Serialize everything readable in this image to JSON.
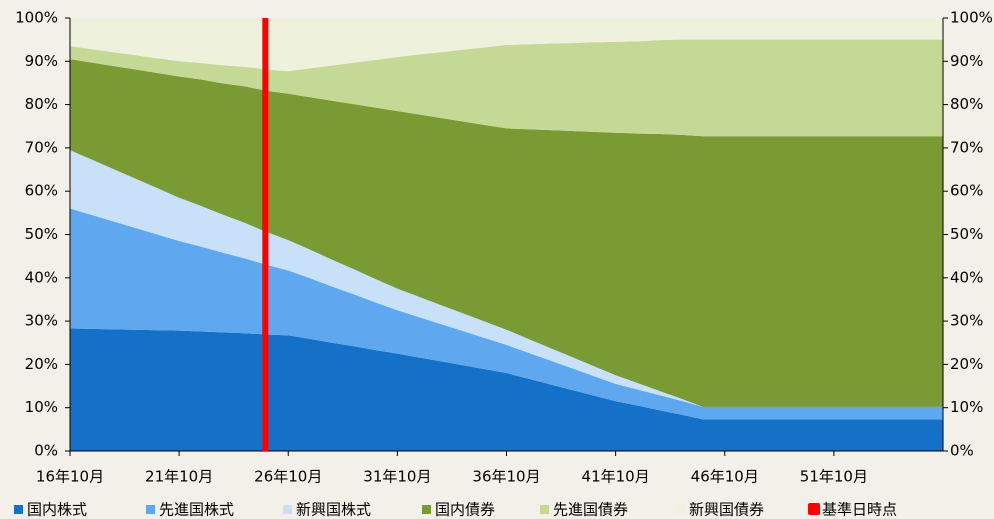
{
  "chart_data": {
    "type": "stacked_area",
    "categories": [
      "16年10月",
      null,
      null,
      null,
      null,
      "21年10月",
      null,
      null,
      null,
      null,
      "26年10月",
      null,
      null,
      null,
      null,
      "31年10月",
      null,
      null,
      null,
      null,
      "36年10月",
      null,
      null,
      null,
      null,
      "41年10月",
      null,
      null,
      null,
      null,
      "46年10月",
      null,
      null,
      null,
      null,
      "51年10月",
      null,
      null,
      null,
      null,
      null
    ],
    "series": [
      {
        "name": "国内株式",
        "color": "#1570c8",
        "values": [
          28.3,
          28.2,
          28.1,
          28.0,
          27.9,
          27.8,
          27.6,
          27.4,
          27.2,
          26.9,
          26.7,
          25.9,
          25.0,
          24.2,
          23.3,
          22.5,
          21.6,
          20.7,
          19.8,
          18.9,
          18.0,
          16.7,
          15.4,
          14.1,
          12.8,
          11.5,
          10.5,
          9.4,
          8.4,
          7.3,
          7.3,
          7.3,
          7.3,
          7.3,
          7.3,
          7.3,
          7.3,
          7.3,
          7.3,
          7.3,
          7.3
        ]
      },
      {
        "name": "先進国株式",
        "color": "#5fa8ef",
        "values": [
          27.7,
          26.3,
          24.9,
          23.5,
          22.1,
          20.7,
          19.6,
          18.4,
          17.3,
          16.1,
          15.0,
          14.0,
          13.0,
          12.0,
          11.0,
          10.0,
          9.3,
          8.6,
          7.9,
          7.2,
          6.5,
          6.0,
          5.5,
          5.0,
          4.5,
          4.0,
          3.7,
          3.5,
          3.2,
          2.9,
          2.9,
          2.9,
          2.9,
          2.9,
          2.9,
          2.9,
          2.9,
          2.9,
          2.9,
          2.9,
          2.9
        ]
      },
      {
        "name": "新興国株式",
        "color": "#c9e1f8",
        "values": [
          13.5,
          12.8,
          12.1,
          11.4,
          10.7,
          10.0,
          9.4,
          8.8,
          8.2,
          7.6,
          7.0,
          6.6,
          6.2,
          5.8,
          5.4,
          5.0,
          4.7,
          4.4,
          4.1,
          3.8,
          3.5,
          3.2,
          2.9,
          2.6,
          2.3,
          2.0,
          1.5,
          1.0,
          0.5,
          0,
          0,
          0,
          0,
          0,
          0,
          0,
          0,
          0,
          0,
          0,
          0
        ]
      },
      {
        "name": "国内債券",
        "color": "#7a9a33",
        "values": [
          21.0,
          22.4,
          23.8,
          25.2,
          26.6,
          28.0,
          29.2,
          30.3,
          31.5,
          32.6,
          33.8,
          35.2,
          36.7,
          38.1,
          39.6,
          41.0,
          42.1,
          43.2,
          44.3,
          45.4,
          46.5,
          48.4,
          50.3,
          52.2,
          54.1,
          56.0,
          57.6,
          59.3,
          60.9,
          62.5,
          62.5,
          62.5,
          62.5,
          62.5,
          62.5,
          62.5,
          62.5,
          62.5,
          62.5,
          62.5,
          62.5
        ]
      },
      {
        "name": "先進国債券",
        "color": "#c5d996",
        "values": [
          3.0,
          3.1,
          3.2,
          3.3,
          3.4,
          3.5,
          3.8,
          4.2,
          4.5,
          4.9,
          5.2,
          6.7,
          8.1,
          9.6,
          11.0,
          12.5,
          13.9,
          15.2,
          16.6,
          17.9,
          19.3,
          19.6,
          20.0,
          20.3,
          20.7,
          21.0,
          21.3,
          21.7,
          22.0,
          22.3,
          22.3,
          22.3,
          22.3,
          22.3,
          22.3,
          22.3,
          22.3,
          22.3,
          22.3,
          22.3,
          22.3
        ]
      },
      {
        "name": "新興国債券",
        "color": "#eef2dc",
        "values": [
          6.5,
          7.2,
          7.9,
          8.6,
          9.3,
          10.0,
          10.4,
          10.9,
          11.3,
          11.9,
          12.3,
          11.6,
          11.0,
          10.3,
          9.7,
          9.0,
          8.4,
          7.9,
          7.3,
          6.8,
          6.2,
          6.1,
          5.9,
          5.8,
          5.6,
          5.5,
          5.4,
          5.1,
          5.0,
          5.0,
          5.0,
          5.0,
          5.0,
          5.0,
          5.0,
          5.0,
          5.0,
          5.0,
          5.0,
          5.0,
          5.0
        ]
      }
    ],
    "reference_line": {
      "name": "基準日時点",
      "color": "#ff0000",
      "position": 8.95
    },
    "ylim": [
      0,
      100
    ],
    "yticks": [
      {
        "value": 0,
        "label": "0%"
      },
      {
        "value": 10,
        "label": "10%"
      },
      {
        "value": 20,
        "label": "20%"
      },
      {
        "value": 30,
        "label": "30%"
      },
      {
        "value": 40,
        "label": "40%"
      },
      {
        "value": 50,
        "label": "50%"
      },
      {
        "value": 60,
        "label": "60%"
      },
      {
        "value": 70,
        "label": "70%"
      },
      {
        "value": 80,
        "label": "80%"
      },
      {
        "value": 90,
        "label": "90%"
      },
      {
        "value": 100,
        "label": "100%"
      }
    ],
    "y2lim": [
      0,
      100
    ],
    "y2ticks": [
      {
        "value": 0,
        "label": "0%"
      },
      {
        "value": 10,
        "label": "10%"
      },
      {
        "value": 20,
        "label": "20%"
      },
      {
        "value": 30,
        "label": "30%"
      },
      {
        "value": 40,
        "label": "40%"
      },
      {
        "value": 50,
        "label": "50%"
      },
      {
        "value": 60,
        "label": "60%"
      },
      {
        "value": 70,
        "label": "70%"
      },
      {
        "value": 80,
        "label": "80%"
      },
      {
        "value": 90,
        "label": "90%"
      },
      {
        "value": 100,
        "label": "100%"
      }
    ],
    "grid": false
  }
}
